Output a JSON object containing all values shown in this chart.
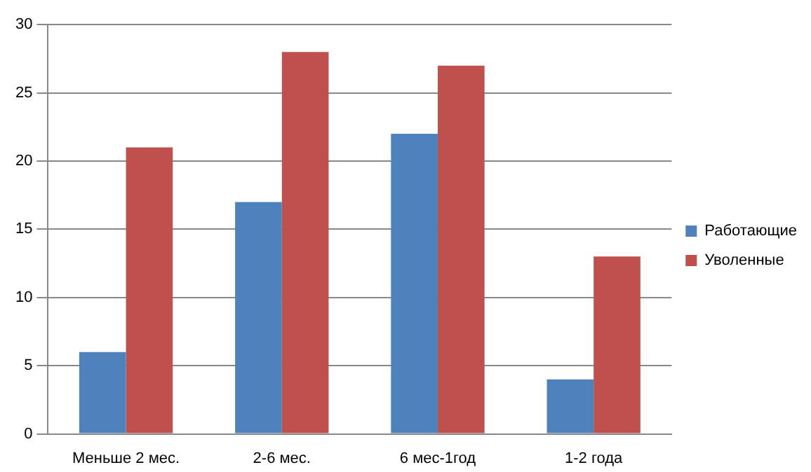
{
  "chart_data": {
    "type": "bar",
    "categories": [
      "Меньше 2 мес.",
      "2-6 мес.",
      "6 мес-1год",
      "1-2 года"
    ],
    "series": [
      {
        "name": "Работающие",
        "color": "#4f81bd",
        "values": [
          6,
          17,
          22,
          4
        ]
      },
      {
        "name": "Уволенные",
        "color": "#c0504d",
        "values": [
          21,
          28,
          27,
          13
        ]
      }
    ],
    "ylim": [
      0,
      30
    ],
    "yticks": [
      0,
      5,
      10,
      15,
      20,
      25,
      30
    ],
    "grid": "y",
    "legend": "right"
  }
}
